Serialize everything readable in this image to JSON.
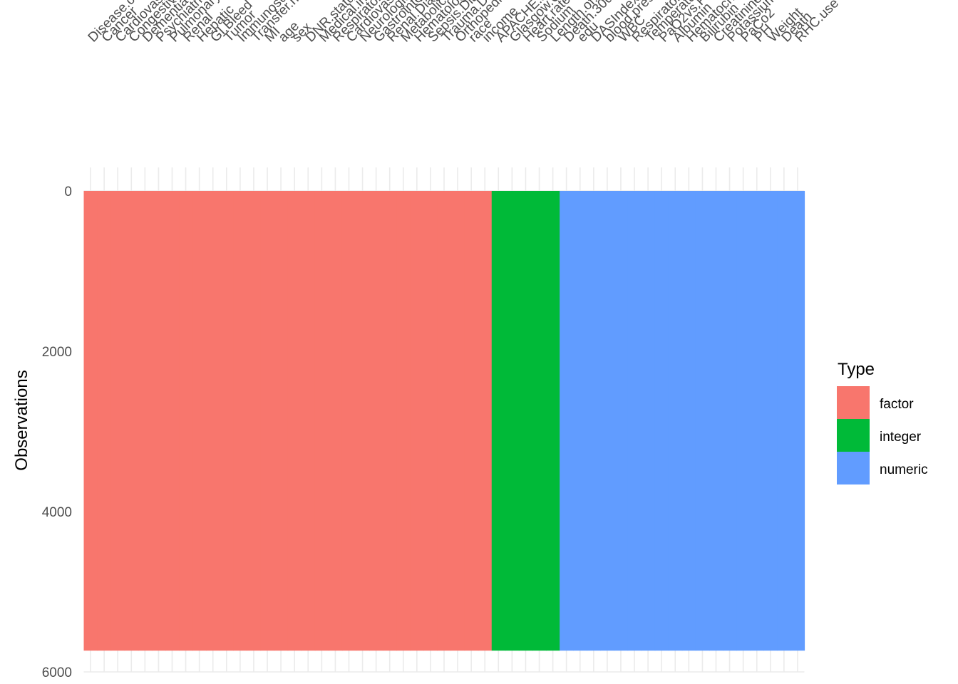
{
  "chart_data": {
    "type": "heatmap",
    "ylabel": "Observations",
    "n_observations": 5735,
    "y_range": [
      0,
      6000
    ],
    "y_ticks": [
      "0",
      "2000",
      "4000",
      "6000"
    ],
    "y_reversed": true,
    "x_labels_position": "top",
    "columns": [
      "Disease.category",
      "Cancer",
      "Cardiovascular",
      "Congestive.HF",
      "Dementia",
      "Psychiatric",
      "Pulmonary",
      "Renal",
      "Hepatic",
      "GI.Bleed",
      "Tumor",
      "Immunosupperssion",
      "Transfer.hx",
      "MI",
      "age",
      "sex",
      "DNR.status",
      "Medical.insurance",
      "Respiratory.Diag",
      "Cardiovascular.Diag",
      "Neurological.Diag",
      "Gastrointestinal.Diag",
      "Renal.Diag",
      "Metabolic.Diag",
      "Hematologic.Diag",
      "Sepsis.Diag",
      "Trauma.Diag",
      "Orthopedic.Diag",
      "race",
      "income",
      "APACHE.score",
      "Glasgow.Coma.Score",
      "Heart.rate",
      "Sodium",
      "Length.of.Stay",
      "Death.30days",
      "edu",
      "DASIndex",
      "blood.pressure",
      "WBC",
      "Respiratory.rate",
      "Temperature",
      "PaO2vs.FIO2",
      "Albumin",
      "Hematocrit",
      "Bilirubin",
      "Creatinine",
      "Potassium",
      "PaCo2",
      "PH",
      "Weight",
      "Death",
      "RHC.use"
    ],
    "column_types": [
      "factor",
      "factor",
      "factor",
      "factor",
      "factor",
      "factor",
      "factor",
      "factor",
      "factor",
      "factor",
      "factor",
      "factor",
      "factor",
      "factor",
      "factor",
      "factor",
      "factor",
      "factor",
      "factor",
      "factor",
      "factor",
      "factor",
      "factor",
      "factor",
      "factor",
      "factor",
      "factor",
      "factor",
      "factor",
      "factor",
      "integer",
      "integer",
      "integer",
      "integer",
      "integer",
      "numeric",
      "numeric",
      "numeric",
      "numeric",
      "numeric",
      "numeric",
      "numeric",
      "numeric",
      "numeric",
      "numeric",
      "numeric",
      "numeric",
      "numeric",
      "numeric",
      "numeric",
      "numeric",
      "numeric",
      "numeric"
    ],
    "legend": {
      "title": "Type",
      "position": "right",
      "items": [
        {
          "label": "factor",
          "color": "#F8766D"
        },
        {
          "label": "integer",
          "color": "#00BA38"
        },
        {
          "label": "numeric",
          "color": "#619CFF"
        }
      ]
    },
    "grid": true
  }
}
